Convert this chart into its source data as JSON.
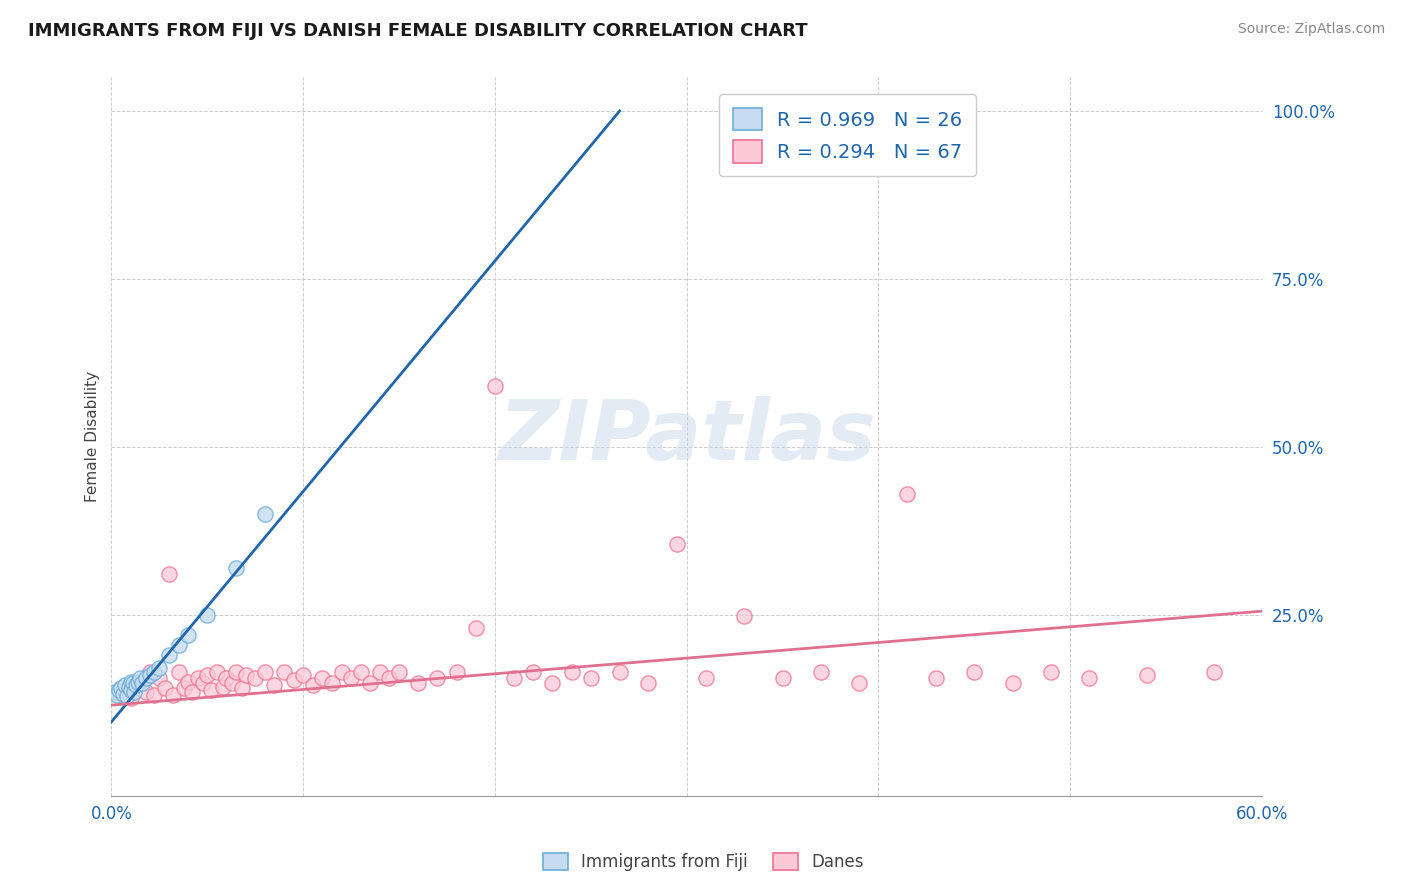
{
  "title": "IMMIGRANTS FROM FIJI VS DANISH FEMALE DISABILITY CORRELATION CHART",
  "source_text": "Source: ZipAtlas.com",
  "ylabel": "Female Disability",
  "xlim": [
    0.0,
    0.6
  ],
  "ylim": [
    -0.02,
    1.05
  ],
  "fiji_color": "#6baed6",
  "fiji_color_light": "#c6dbef",
  "dane_color_edge": "#f07090",
  "dane_color_fill": "#fbc9d8",
  "fiji_R": 0.969,
  "fiji_N": 26,
  "dane_R": 0.294,
  "dane_N": 67,
  "watermark": "ZIPatlas",
  "fiji_scatter_x": [
    0.002,
    0.003,
    0.004,
    0.005,
    0.006,
    0.007,
    0.008,
    0.009,
    0.01,
    0.01,
    0.011,
    0.012,
    0.013,
    0.014,
    0.015,
    0.016,
    0.018,
    0.02,
    0.022,
    0.025,
    0.03,
    0.035,
    0.04,
    0.05,
    0.065,
    0.08
  ],
  "fiji_scatter_y": [
    0.135,
    0.13,
    0.138,
    0.14,
    0.132,
    0.145,
    0.128,
    0.142,
    0.15,
    0.138,
    0.148,
    0.135,
    0.145,
    0.15,
    0.155,
    0.148,
    0.155,
    0.16,
    0.165,
    0.17,
    0.19,
    0.205,
    0.22,
    0.25,
    0.32,
    0.4
  ],
  "fiji_line_x": [
    0.0,
    0.265
  ],
  "fiji_line_y": [
    0.09,
    1.0
  ],
  "dane_line_x": [
    0.0,
    0.6
  ],
  "dane_line_y": [
    0.115,
    0.255
  ],
  "dane_scatter_x": [
    0.005,
    0.01,
    0.015,
    0.018,
    0.02,
    0.022,
    0.025,
    0.028,
    0.03,
    0.032,
    0.035,
    0.038,
    0.04,
    0.042,
    0.045,
    0.048,
    0.05,
    0.052,
    0.055,
    0.058,
    0.06,
    0.063,
    0.065,
    0.068,
    0.07,
    0.075,
    0.08,
    0.085,
    0.09,
    0.095,
    0.1,
    0.105,
    0.11,
    0.115,
    0.12,
    0.125,
    0.13,
    0.135,
    0.14,
    0.145,
    0.15,
    0.16,
    0.17,
    0.18,
    0.19,
    0.2,
    0.21,
    0.22,
    0.23,
    0.24,
    0.25,
    0.265,
    0.28,
    0.295,
    0.31,
    0.33,
    0.35,
    0.37,
    0.39,
    0.415,
    0.43,
    0.45,
    0.47,
    0.49,
    0.51,
    0.54,
    0.575
  ],
  "dane_scatter_y": [
    0.14,
    0.125,
    0.15,
    0.135,
    0.165,
    0.13,
    0.155,
    0.14,
    0.31,
    0.13,
    0.165,
    0.14,
    0.15,
    0.135,
    0.155,
    0.148,
    0.16,
    0.138,
    0.165,
    0.142,
    0.155,
    0.148,
    0.165,
    0.14,
    0.16,
    0.155,
    0.165,
    0.145,
    0.165,
    0.152,
    0.16,
    0.145,
    0.155,
    0.148,
    0.165,
    0.155,
    0.165,
    0.148,
    0.165,
    0.155,
    0.165,
    0.148,
    0.155,
    0.165,
    0.23,
    0.59,
    0.155,
    0.165,
    0.148,
    0.165,
    0.155,
    0.165,
    0.148,
    0.355,
    0.155,
    0.248,
    0.155,
    0.165,
    0.148,
    0.43,
    0.155,
    0.165,
    0.148,
    0.165,
    0.155,
    0.16,
    0.165
  ]
}
